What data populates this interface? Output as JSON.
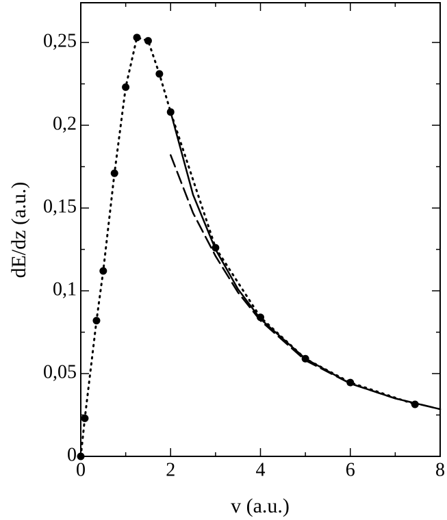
{
  "chart_data": {
    "type": "line",
    "x_label": "v (a.u.)",
    "y_label": "dE/dz (a.u.)",
    "xlim": [
      0,
      8
    ],
    "ylim": [
      0,
      0.274
    ],
    "xticks": [
      0,
      2,
      4,
      6,
      8
    ],
    "xminorticks": [
      1,
      3,
      5,
      7
    ],
    "yticks": [
      0,
      {
        "value": 0.05,
        "label": "0,05"
      },
      {
        "value": 0.1,
        "label": "0,1"
      },
      {
        "value": 0.15,
        "label": "0,15"
      },
      {
        "value": 0.2,
        "label": "0,2"
      },
      {
        "value": 0.25,
        "label": "0,25"
      }
    ],
    "yminorticks": [
      0.025,
      0.075,
      0.125,
      0.175,
      0.225
    ],
    "series": [
      {
        "x": [
          0,
          0.09,
          0.35,
          0.5,
          0.75,
          1.0,
          1.25,
          1.5,
          1.75,
          2.0,
          3.0,
          4.0,
          5.0,
          6.0,
          7.44
        ],
        "values": [
          0,
          0.023,
          0.082,
          0.112,
          0.171,
          0.223,
          0.253,
          0.251,
          0.231,
          0.208,
          0.126,
          0.084,
          0.059,
          0.0446,
          0.0314
        ],
        "color": "#000000",
        "line_style": "dotted",
        "markers": true
      },
      {
        "x": [
          2,
          2.5,
          3,
          3.5,
          4,
          5,
          6,
          7,
          8
        ],
        "values": [
          0.208,
          0.158,
          0.125,
          0.101,
          0.083,
          0.059,
          0.044,
          0.035,
          0.0285
        ],
        "color": "#000000",
        "line_style": "solid",
        "markers": false
      },
      {
        "x": [
          2,
          2.5,
          3,
          3.5,
          4,
          5,
          6,
          7,
          8
        ],
        "values": [
          0.182,
          0.147,
          0.121,
          0.099,
          0.082,
          0.058,
          0.044,
          0.035,
          0.0285
        ],
        "color": "#000000",
        "line_style": "dashed",
        "markers": false
      }
    ]
  }
}
